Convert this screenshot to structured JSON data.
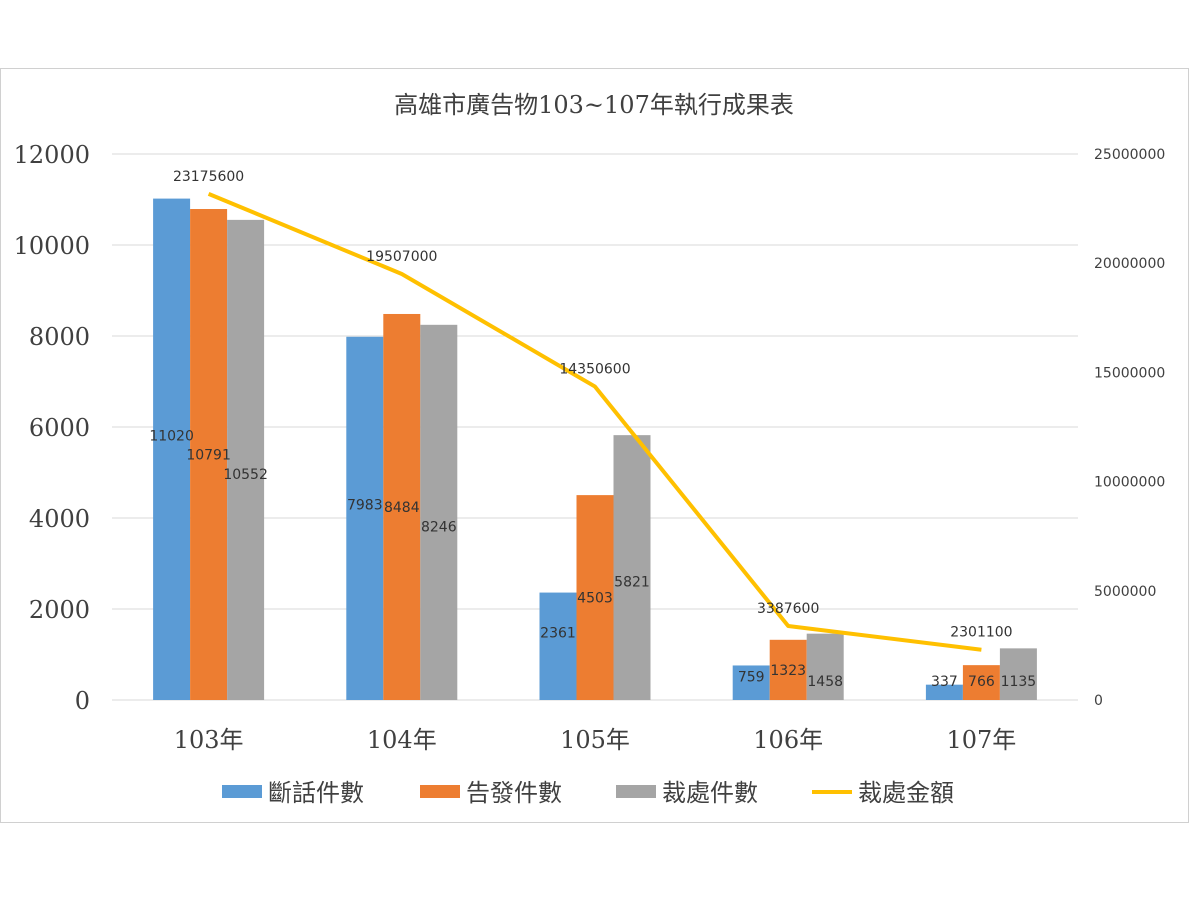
{
  "chart_data": {
    "type": "bar",
    "title": "高雄市廣告物103~107年執行成果表",
    "categories": [
      "103年",
      "104年",
      "105年",
      "106年",
      "107年"
    ],
    "ylim": [
      0,
      12000
    ],
    "yticks": [
      "0",
      "2000",
      "4000",
      "6000",
      "8000",
      "10000",
      "12000"
    ],
    "y2lim": [
      0,
      25000000
    ],
    "y2ticks": [
      "0",
      "5000000",
      "10000000",
      "15000000",
      "20000000",
      "25000000"
    ],
    "series": [
      {
        "name": "斷話件數",
        "kind": "bar",
        "axis": "left",
        "color": "#5B9BD5",
        "values": [
          11020,
          7983,
          2361,
          759,
          337
        ]
      },
      {
        "name": "告發件數",
        "kind": "bar",
        "axis": "left",
        "color": "#ED7D31",
        "values": [
          10791,
          8484,
          4503,
          1323,
          766
        ]
      },
      {
        "name": "裁處件數",
        "kind": "bar",
        "axis": "left",
        "color": "#A5A5A5",
        "values": [
          10552,
          8246,
          5821,
          1458,
          1135
        ]
      },
      {
        "name": "裁處金額",
        "kind": "line",
        "axis": "right",
        "color": "#FFC000",
        "values": [
          23175600,
          19507000,
          14350600,
          3387600,
          2301100
        ]
      }
    ],
    "legend_position": "bottom",
    "grid": true
  }
}
